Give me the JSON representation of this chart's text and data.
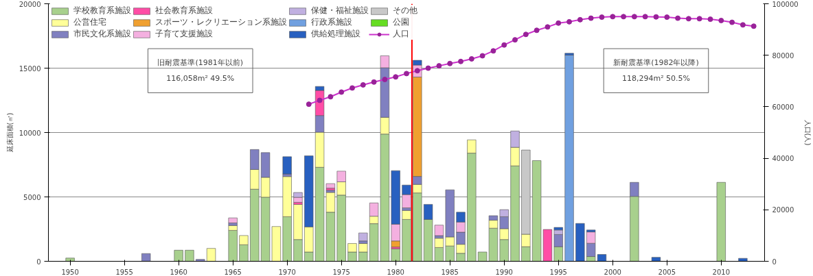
{
  "chart_data": {
    "type": "bar",
    "stacked": true,
    "ylabel": "延床面積(㎡)",
    "y2label": "人口(人)",
    "x": [
      1950,
      1957,
      1960,
      1961,
      1962,
      1963,
      1965,
      1966,
      1967,
      1968,
      1969,
      1970,
      1971,
      1972,
      1973,
      1974,
      1975,
      1976,
      1977,
      1978,
      1979,
      1980,
      1981,
      1982,
      1983,
      1984,
      1985,
      1986,
      1987,
      1988,
      1989,
      1990,
      1991,
      1992,
      1993,
      1994,
      1995,
      1996,
      1997,
      1998,
      1999,
      2002,
      2004,
      2010,
      2012
    ],
    "series": [
      {
        "name": "学校教育系施設",
        "color": "#a8d08d",
        "values": [
          250,
          null,
          860,
          860,
          null,
          null,
          2400,
          1280,
          5600,
          4980,
          null,
          3460,
          1690,
          720,
          7300,
          3810,
          5140,
          720,
          720,
          2920,
          9880,
          970,
          3250,
          5310,
          3250,
          1070,
          1190,
          620,
          8400,
          720,
          2570,
          1690,
          7410,
          1130,
          7820,
          null,
          1130,
          null,
          null,
          370,
          null,
          5040,
          null,
          6130,
          null
        ]
      },
      {
        "name": "公営住宅",
        "color": "#ffff99",
        "values": [
          null,
          null,
          null,
          null,
          null,
          1000,
          380,
          720,
          1530,
          1540,
          2700,
          3120,
          2730,
          1950,
          2720,
          1540,
          1030,
          660,
          660,
          580,
          1300,
          null,
          700,
          660,
          null,
          720,
          700,
          700,
          1030,
          null,
          620,
          840,
          1440,
          970,
          null,
          null,
          null,
          null,
          null,
          null,
          null,
          null,
          null,
          null,
          null
        ]
      },
      {
        "name": "市民文化系施設",
        "color": "#8080c0",
        "values": [
          null,
          600,
          null,
          null,
          150,
          null,
          200,
          null,
          1550,
          1920,
          null,
          200,
          null,
          null,
          1300,
          170,
          null,
          null,
          200,
          null,
          3850,
          null,
          200,
          620,
          null,
          200,
          3660,
          940,
          null,
          null,
          350,
          930,
          null,
          null,
          null,
          null,
          950,
          null,
          null,
          1030,
          null,
          1090,
          null,
          null,
          null
        ]
      },
      {
        "name": "社会教育系施設",
        "color": "#ff4da6",
        "values": [
          null,
          null,
          null,
          null,
          null,
          null,
          null,
          null,
          null,
          null,
          null,
          null,
          160,
          null,
          1950,
          160,
          null,
          null,
          null,
          null,
          null,
          140,
          null,
          null,
          null,
          null,
          null,
          null,
          null,
          null,
          null,
          null,
          null,
          null,
          null,
          2470,
          null,
          null,
          null,
          null,
          null,
          null,
          null,
          null,
          null
        ]
      },
      {
        "name": "スポーツ・レクリエーション系施設",
        "color": "#f0a030",
        "values": [
          null,
          null,
          null,
          null,
          null,
          null,
          null,
          null,
          null,
          null,
          null,
          null,
          null,
          null,
          null,
          null,
          null,
          null,
          null,
          null,
          null,
          470,
          null,
          7720,
          null,
          null,
          null,
          null,
          null,
          null,
          null,
          null,
          null,
          null,
          null,
          null,
          null,
          null,
          null,
          null,
          null,
          null,
          null,
          null,
          null
        ]
      },
      {
        "name": "子育て支援施設",
        "color": "#f4b0e0",
        "values": [
          null,
          null,
          null,
          null,
          null,
          null,
          390,
          null,
          null,
          null,
          null,
          null,
          390,
          null,
          null,
          350,
          830,
          null,
          null,
          1030,
          930,
          1300,
          1030,
          930,
          null,
          820,
          null,
          790,
          null,
          null,
          null,
          null,
          null,
          null,
          null,
          null,
          null,
          null,
          null,
          880,
          null,
          null,
          null,
          null,
          null
        ]
      },
      {
        "name": "保健・福祉施設",
        "color": "#c0b0e0",
        "values": [
          null,
          null,
          null,
          null,
          null,
          null,
          null,
          null,
          null,
          null,
          null,
          null,
          370,
          null,
          null,
          null,
          null,
          null,
          620,
          null,
          null,
          null,
          null,
          null,
          null,
          null,
          null,
          null,
          null,
          null,
          null,
          550,
          1270,
          null,
          null,
          null,
          350,
          null,
          null,
          null,
          null,
          null,
          null,
          null,
          null
        ]
      },
      {
        "name": "行政系施設",
        "color": "#70a0e0",
        "values": [
          null,
          null,
          null,
          null,
          null,
          null,
          null,
          null,
          null,
          null,
          null,
          null,
          null,
          null,
          null,
          null,
          null,
          null,
          null,
          null,
          null,
          null,
          null,
          null,
          null,
          null,
          null,
          null,
          null,
          null,
          null,
          null,
          null,
          null,
          null,
          null,
          null,
          16010,
          null,
          null,
          null,
          null,
          null,
          null,
          null
        ]
      },
      {
        "name": "供給処理施設",
        "color": "#2860c0",
        "values": [
          null,
          null,
          null,
          null,
          null,
          null,
          null,
          null,
          null,
          null,
          null,
          1340,
          null,
          5520,
          310,
          null,
          null,
          null,
          null,
          null,
          null,
          4160,
          740,
          370,
          1170,
          null,
          null,
          760,
          null,
          null,
          null,
          null,
          null,
          null,
          null,
          null,
          200,
          150,
          2940,
          150,
          530,
          null,
          310,
          null,
          230
        ]
      },
      {
        "name": "その他",
        "color": "#c8c8c8",
        "values": [
          null,
          null,
          null,
          null,
          null,
          null,
          null,
          null,
          null,
          null,
          null,
          null,
          null,
          null,
          null,
          null,
          null,
          null,
          null,
          null,
          null,
          null,
          null,
          null,
          null,
          null,
          null,
          null,
          null,
          null,
          null,
          null,
          null,
          6540,
          null,
          null,
          null,
          null,
          null,
          null,
          null,
          null,
          null,
          null,
          null
        ]
      },
      {
        "name": "公園",
        "color": "#66dd22",
        "values": [
          null,
          null,
          null,
          null,
          null,
          null,
          null,
          null,
          null,
          null,
          null,
          null,
          null,
          null,
          null,
          null,
          null,
          null,
          null,
          null,
          null,
          null,
          null,
          null,
          null,
          null,
          null,
          null,
          null,
          null,
          null,
          null,
          null,
          null,
          null,
          null,
          null,
          null,
          null,
          null,
          null,
          null,
          null,
          null,
          null
        ]
      },
      {
        "name": "人口",
        "type": "line",
        "axis": "y2",
        "color": "#cc33cc",
        "marker": "circle",
        "x": [
          1972,
          1973,
          1974,
          1975,
          1976,
          1977,
          1978,
          1979,
          1980,
          1981,
          1982,
          1983,
          1984,
          1985,
          1986,
          1987,
          1988,
          1989,
          1990,
          1991,
          1992,
          1993,
          1994,
          1995,
          1996,
          1997,
          1998,
          1999,
          2000,
          2001,
          2002,
          2003,
          2004,
          2005,
          2006,
          2007,
          2008,
          2009,
          2010,
          2011,
          2012,
          2013
        ],
        "values": [
          61000,
          62500,
          63900,
          65700,
          67300,
          68500,
          69600,
          70600,
          71600,
          72900,
          74000,
          75000,
          75900,
          76800,
          77600,
          78600,
          79800,
          81700,
          84000,
          86000,
          88100,
          89700,
          91000,
          92500,
          93000,
          93800,
          94400,
          94800,
          95000,
          95000,
          95000,
          95000,
          94900,
          94800,
          94400,
          94200,
          94200,
          94000,
          93500,
          92800,
          91800,
          91300
        ]
      }
    ],
    "xlim": [
      1948,
      2014
    ],
    "xticks": [
      1950,
      1955,
      1960,
      1965,
      1970,
      1975,
      1980,
      1985,
      1990,
      1995,
      2000,
      2005,
      2010
    ],
    "ylim": [
      0,
      20000
    ],
    "yticks": [
      0,
      5000,
      10000,
      15000,
      20000
    ],
    "y2lim": [
      0,
      100000
    ],
    "y2ticks": [
      0,
      20000,
      40000,
      60000,
      80000,
      100000
    ],
    "ref_lines": [
      {
        "axis": "x",
        "value": 1981.5,
        "label": null,
        "color": "#ff0000"
      }
    ],
    "annotations": [
      "旧耐震基準(1981年以前)\n116,058m² 49.5%",
      "新耐震基準(1982年以降)\n118,294m² 50.5%"
    ],
    "grid": "y",
    "legend": "top"
  }
}
